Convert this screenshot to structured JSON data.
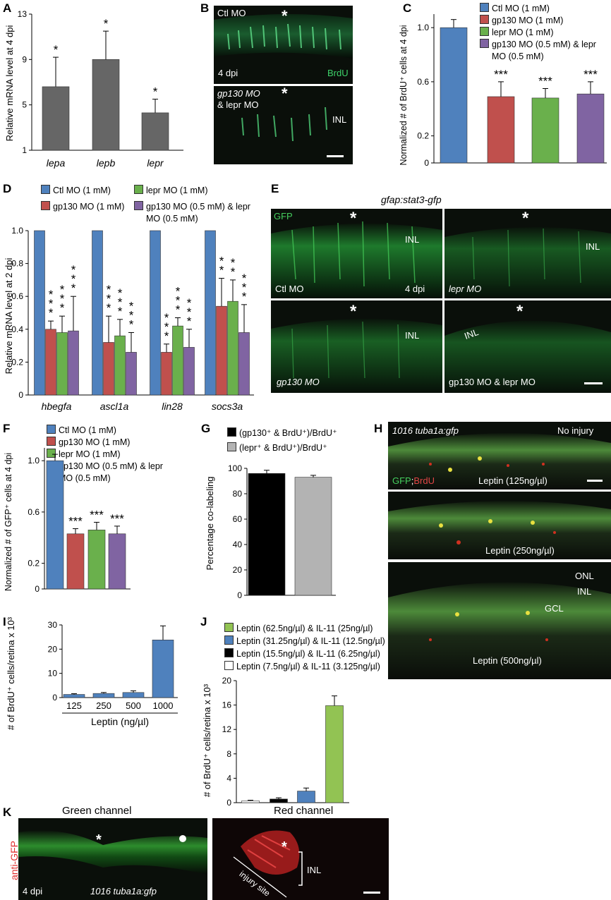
{
  "panels": {
    "A": {
      "letter": "A"
    },
    "B": {
      "letter": "B",
      "top_label": "Ctl MO",
      "dpi": "4 dpi",
      "stain": "BrdU",
      "bottom_label_1": "gp130 MO",
      "bottom_label_2": "& lepr MO",
      "layer": "INL",
      "asterisk": "*"
    },
    "C": {
      "letter": "C"
    },
    "D": {
      "letter": "D"
    },
    "E": {
      "letter": "E",
      "title": "gfap:stat3-gfp",
      "stain": "GFP",
      "asterisk": "*",
      "layer": "INL",
      "dpi": "4 dpi",
      "sub": [
        "Ctl MO",
        "lepr MO",
        "gp130 MO",
        "gp130 MO & lepr MO"
      ]
    },
    "F": {
      "letter": "F"
    },
    "G": {
      "letter": "G"
    },
    "H": {
      "letter": "H",
      "title": "1016 tuba1a:gfp",
      "no_injury": "No injury",
      "stain_green": "GFP",
      "stain_sep": ";",
      "stain_red": "BrdU",
      "sub": [
        "Leptin (125ng/µl)",
        "Leptin (250ng/µl)",
        "Leptin (500ng/µl)"
      ],
      "layers": [
        "ONL",
        "INL",
        "GCL"
      ]
    },
    "I": {
      "letter": "I"
    },
    "J": {
      "letter": "J"
    },
    "K": {
      "letter": "K",
      "green_title": "Green channel",
      "red_title": "Red channel",
      "side_label": "anti-GFP",
      "dpi": "4 dpi",
      "line": "1016 tuba1a:gfp",
      "injury": "injury site",
      "layer": "INL",
      "asterisk": "*"
    }
  },
  "colors": {
    "blue": "#4f81bd",
    "red": "#c0504d",
    "green": "#6ab04c",
    "purple": "#8064a2",
    "gray": "#666666",
    "light_gray": "#b3b3b3",
    "light_green": "#92c353"
  },
  "chart_data": [
    {
      "id": "A",
      "type": "bar",
      "categories": [
        "lepa",
        "lepb",
        "lepr"
      ],
      "values": [
        6.6,
        9.0,
        4.3
      ],
      "errors": [
        2.6,
        2.5,
        1.2
      ],
      "significance": [
        "*",
        "*",
        "*"
      ],
      "ylabel": "Relative mRNA level at 4 dpi",
      "ylim": [
        1,
        13
      ],
      "yticks": [
        1,
        5,
        9,
        13
      ]
    },
    {
      "id": "C",
      "type": "bar",
      "categories": [
        "Ctl MO (1 mM)",
        "gp130 MO (1 mM)",
        "lepr MO (1 mM)",
        "gp130 MO (0.5 mM) & lepr MO (0.5 mM)"
      ],
      "values": [
        1.0,
        0.49,
        0.48,
        0.51
      ],
      "errors": [
        0.06,
        0.11,
        0.07,
        0.09
      ],
      "significance": [
        "",
        "***",
        "***",
        "***"
      ],
      "ylabel": "Normalized # of BrdU⁺ cells at 4 dpi",
      "ylim": [
        0,
        1.1
      ],
      "yticks": [
        "0",
        "0.2",
        "0.6",
        "1.0"
      ]
    },
    {
      "id": "D",
      "type": "bar",
      "categories": [
        "hbegfa",
        "ascl1a",
        "lin28",
        "socs3a"
      ],
      "series": [
        {
          "name": "Ctl MO (1 mM)",
          "values": [
            1.0,
            1.0,
            1.0,
            1.0
          ],
          "errors": [
            0,
            0,
            0,
            0
          ],
          "significance": [
            "",
            "",
            "",
            ""
          ]
        },
        {
          "name": "gp130 MO (1 mM)",
          "values": [
            0.4,
            0.32,
            0.26,
            0.54
          ],
          "errors": [
            0.05,
            0.16,
            0.05,
            0.17
          ],
          "significance": [
            "***",
            "***",
            "***",
            "**"
          ]
        },
        {
          "name": "lepr MO (1 mM)",
          "values": [
            0.38,
            0.36,
            0.42,
            0.57
          ],
          "errors": [
            0.1,
            0.1,
            0.05,
            0.13
          ],
          "significance": [
            "***",
            "***",
            "***",
            "**"
          ]
        },
        {
          "name": "gp130 MO (0.5 mM) & lepr MO (0.5 mM)",
          "values": [
            0.39,
            0.26,
            0.29,
            0.38
          ],
          "errors": [
            0.21,
            0.12,
            0.11,
            0.17
          ],
          "significance": [
            "***",
            "***",
            "***",
            "***"
          ]
        }
      ],
      "ylabel": "Relative mRNA level at 2 dpi",
      "ylim": [
        0,
        1.0
      ],
      "yticks": [
        "0",
        "0.2",
        "0.4",
        "0.6",
        "0.8",
        "1.0"
      ]
    },
    {
      "id": "F",
      "type": "bar",
      "categories": [
        "Ctl MO (1 mM)",
        "gp130 MO (1 mM)",
        "lepr MO (1 mM)",
        "gp130 MO (0.5 mM) & lepr MO (0.5 mM)"
      ],
      "values": [
        1.0,
        0.43,
        0.46,
        0.43
      ],
      "errors": [
        0.05,
        0.04,
        0.06,
        0.06
      ],
      "significance": [
        "",
        "***",
        "***",
        "***"
      ],
      "ylabel": "Normalized # of GFP⁺ cells at 4 dpi",
      "ylim": [
        0,
        1.1
      ],
      "yticks": [
        "0",
        "0.2",
        "0.6",
        "1.0"
      ]
    },
    {
      "id": "G",
      "type": "bar",
      "categories": [
        "(gp130⁺ & BrdU⁺)/BrdU⁺",
        "(lepr⁺ & BrdU⁺)/BrdU⁺"
      ],
      "values": [
        96,
        93
      ],
      "errors": [
        2.5,
        1.5
      ],
      "ylabel": "Percentage co-labeling",
      "ylim": [
        0,
        100
      ],
      "yticks": [
        "0",
        "20",
        "40",
        "60",
        "80",
        "100"
      ]
    },
    {
      "id": "I",
      "type": "bar",
      "categories": [
        "125",
        "250",
        "500",
        "1000"
      ],
      "values": [
        1.3,
        1.7,
        2.1,
        23.8
      ],
      "errors": [
        0.3,
        0.4,
        0.7,
        5.8
      ],
      "xlabel": "Leptin (ng/µl)",
      "ylabel": "# of BrdU⁺ cells/retina x 10³",
      "ylim": [
        0,
        30
      ],
      "yticks": [
        "0",
        "10",
        "20",
        "30"
      ]
    },
    {
      "id": "J",
      "type": "bar",
      "categories": [
        "Leptin (7.5ng/µl) & IL-11 (3.125ng/µl)",
        "Leptin (15.5ng/µl) & IL-11 (6.25ng/µl)",
        "Leptin (31.25ng/µl) & IL-11 (12.5ng/µl)",
        "Leptin (62.5ng/µl) & IL-11 (25ng/µl)"
      ],
      "values": [
        0.3,
        0.6,
        1.9,
        15.9
      ],
      "errors": [
        0.1,
        0.2,
        0.5,
        1.6
      ],
      "ylabel": "# of BrdU⁺ cells/retina x 10³",
      "ylim": [
        0,
        20
      ],
      "yticks": [
        "0",
        "4",
        "8",
        "12",
        "16",
        "20"
      ]
    }
  ]
}
